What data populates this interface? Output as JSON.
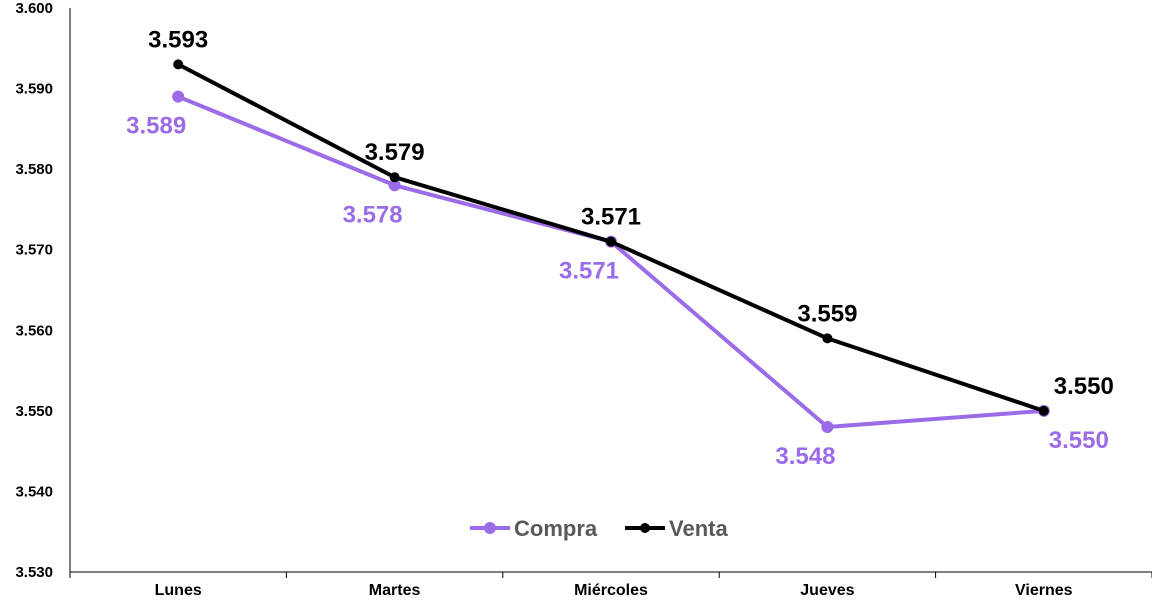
{
  "chart_data": {
    "type": "line",
    "categories": [
      "Lunes",
      "Martes",
      "Miércoles",
      "Jueves",
      "Viernes"
    ],
    "series": [
      {
        "name": "Compra",
        "values": [
          3589,
          3578,
          3571,
          3548,
          3550
        ],
        "labels": [
          "3.589",
          "3.578",
          "3.571",
          "3.548",
          "3.550"
        ],
        "color": "#9B6BE8"
      },
      {
        "name": "Venta",
        "values": [
          3593,
          3579,
          3571,
          3559,
          3550
        ],
        "labels": [
          "3.593",
          "3.579",
          "3.571",
          "3.559",
          "3.550"
        ],
        "color": "#000000"
      }
    ],
    "ylim": [
      3530,
      3600
    ],
    "yticks": [
      3530,
      3540,
      3550,
      3560,
      3570,
      3580,
      3590,
      3600
    ],
    "ytick_labels": [
      "3.530",
      "3.540",
      "3.550",
      "3.560",
      "3.570",
      "3.580",
      "3.590",
      "3.600"
    ],
    "grid": false,
    "legend": "bottom-center"
  }
}
